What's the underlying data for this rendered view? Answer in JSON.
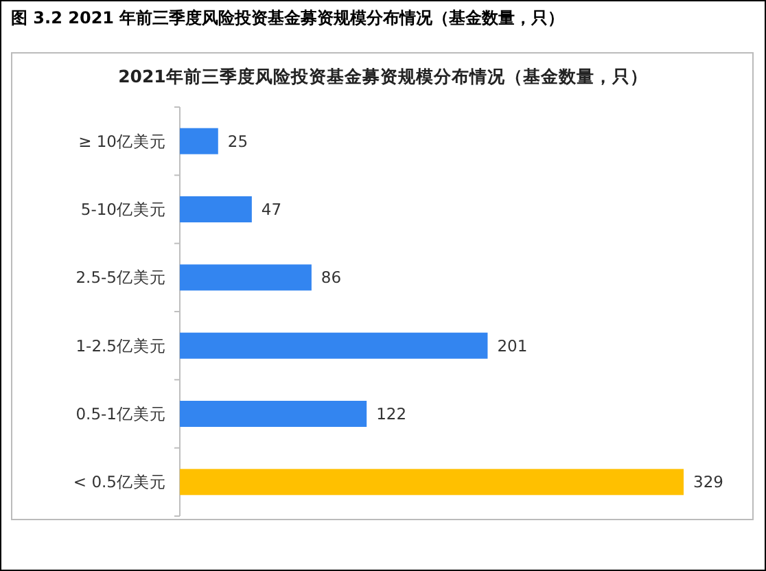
{
  "chart_data": {
    "type": "bar",
    "orientation": "horizontal",
    "title": "图 3.2 2021 年前三季度风险投资基金募资规模分布情况（基金数量，只）",
    "subtitle": "2021年前三季度风险投资基金募资规模分布情况（基金数量，只）",
    "categories": [
      "≥ 10亿美元",
      "5-10亿美元",
      "2.5-5亿美元",
      "1-2.5亿美元",
      "0.5-1亿美元",
      "< 0.5亿美元"
    ],
    "values": [
      25,
      47,
      86,
      201,
      122,
      329
    ],
    "colors": [
      "#3385f0",
      "#3385f0",
      "#3385f0",
      "#3385f0",
      "#3385f0",
      "#ffc000"
    ],
    "data_labels": true
  }
}
